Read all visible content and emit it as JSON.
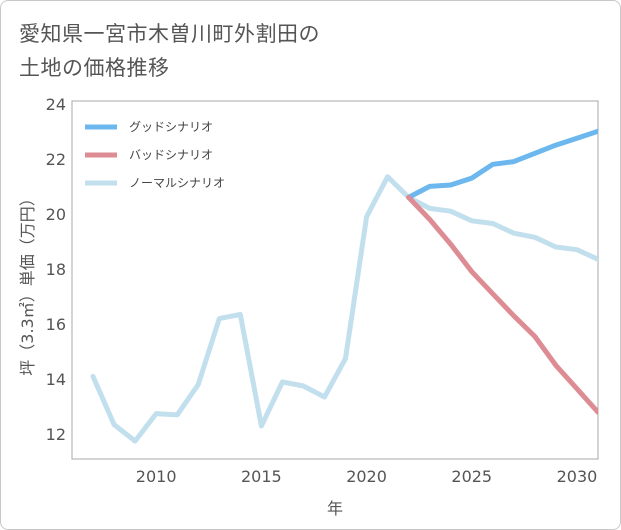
{
  "chart_data": {
    "type": "line",
    "title_lines": [
      "愛知県一宮市木曽川町外割田の",
      "土地の価格推移"
    ],
    "xlabel": "年",
    "ylabel": "坪（3.3㎡）単価（万円）",
    "xlim": [
      2006,
      2031
    ],
    "ylim": [
      11.1,
      24.1
    ],
    "x_ticks": [
      2010,
      2015,
      2020,
      2025,
      2030
    ],
    "y_ticks": [
      12,
      14,
      16,
      18,
      20,
      22,
      24
    ],
    "grid": false,
    "legend_position": "top-left",
    "series": [
      {
        "name": "グッドシナリオ",
        "color": "#6cb8ee",
        "x": [
          2022,
          2023,
          2024,
          2025,
          2026,
          2027,
          2028,
          2029,
          2030,
          2031
        ],
        "values": [
          20.6,
          21.0,
          21.05,
          21.3,
          21.8,
          21.9,
          22.2,
          22.5,
          22.75,
          23.0
        ]
      },
      {
        "name": "バッドシナリオ",
        "color": "#dd8c94",
        "x": [
          2022,
          2023,
          2024,
          2025,
          2026,
          2027,
          2028,
          2029,
          2030,
          2031
        ],
        "values": [
          20.6,
          19.8,
          18.9,
          17.9,
          17.1,
          16.3,
          15.55,
          14.5,
          13.65,
          12.8
        ]
      },
      {
        "name": "ノーマルシナリオ",
        "color": "#c2dfee",
        "x": [
          2007,
          2008,
          2009,
          2010,
          2011,
          2012,
          2013,
          2014,
          2015,
          2016,
          2017,
          2018,
          2019,
          2020,
          2021,
          2022,
          2023,
          2024,
          2025,
          2026,
          2027,
          2028,
          2029,
          2030,
          2031
        ],
        "values": [
          14.1,
          12.35,
          11.75,
          12.75,
          12.7,
          13.8,
          16.2,
          16.35,
          12.3,
          13.9,
          13.75,
          13.35,
          14.75,
          19.9,
          21.35,
          20.6,
          20.2,
          20.1,
          19.75,
          19.65,
          19.3,
          19.15,
          18.8,
          18.7,
          18.35
        ]
      }
    ]
  }
}
